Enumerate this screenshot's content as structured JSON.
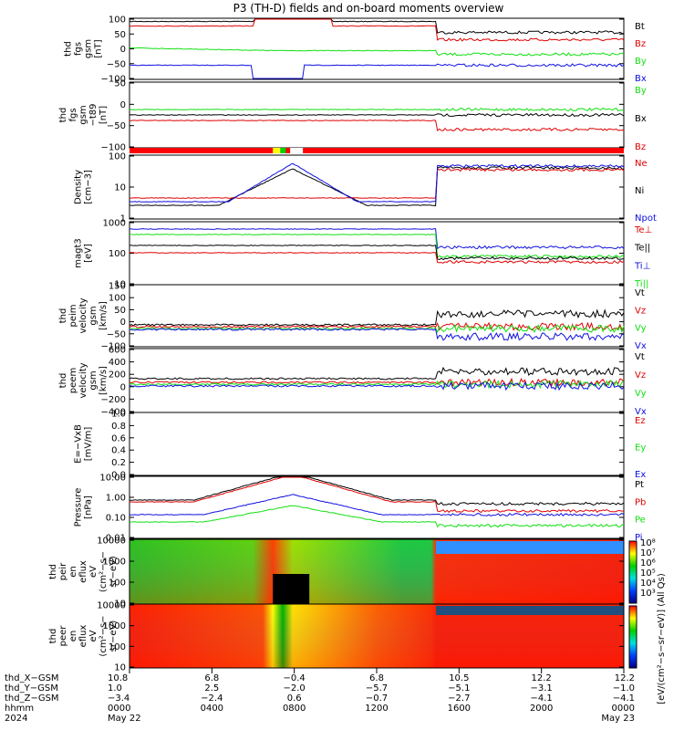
{
  "title": "P3 (TH-D) fields and on-board moments overview",
  "colors": {
    "black": "#000000",
    "red": "#e00000",
    "green": "#10e010",
    "blue": "#1010e0",
    "bar_red": "#ff0000",
    "bar_yellow": "#ffff00",
    "bar_green": "#00d000"
  },
  "chart_data": [
    {
      "id": "fgs_gsm",
      "type": "line",
      "ylabel": [
        "thd",
        "fgs",
        "gsm",
        "[nT]"
      ],
      "ylim": [
        -100,
        100
      ],
      "yticks": [
        "100",
        "50",
        "0",
        "−50",
        "−100"
      ],
      "series": [
        {
          "name": "Bt",
          "color": "black"
        },
        {
          "name": "Bz",
          "color": "red"
        },
        {
          "name": "By",
          "color": "green"
        },
        {
          "name": "Bx",
          "color": "blue"
        }
      ],
      "approx_start": {
        "Bt": 60,
        "Bz": 55,
        "By": 5,
        "Bx": -40
      },
      "approx_end": {
        "Bt": 25,
        "Bz": 20,
        "By": -10,
        "Bx": -45
      }
    },
    {
      "id": "fgs_gsm_minus_t89",
      "type": "line",
      "ylabel": [
        "thd",
        "fgs",
        "gsm",
        "−t89",
        "[nT]"
      ],
      "ylim": [
        -125,
        75
      ],
      "yticks": [
        "50",
        "0",
        "−50",
        "−100"
      ],
      "series": [
        {
          "name": "By",
          "color": "green"
        },
        {
          "name": "Bx",
          "color": "black"
        },
        {
          "name": "Bz",
          "color": "red"
        }
      ]
    },
    {
      "id": "mode_bar",
      "type": "bar"
    },
    {
      "id": "density",
      "type": "line",
      "ylabel": [
        "Density",
        "[cm−3]"
      ],
      "log": true,
      "ylim": [
        0.1,
        100
      ],
      "yticks": [
        "100",
        "10",
        "1"
      ],
      "series": [
        {
          "name": "Ne",
          "color": "red"
        },
        {
          "name": "Ni",
          "color": "black"
        },
        {
          "name": "Npot",
          "color": "blue"
        }
      ]
    },
    {
      "id": "temperature",
      "type": "line",
      "ylabel": [
        "magt3",
        "[eV]"
      ],
      "log": true,
      "ylim": [
        3,
        3000
      ],
      "yticks": [
        "1000",
        "100",
        "10"
      ],
      "series": [
        {
          "name": "Te⊥",
          "color": "red"
        },
        {
          "name": "Te||",
          "color": "black"
        },
        {
          "name": "Ti⊥",
          "color": "blue"
        },
        {
          "name": "Ti||",
          "color": "green"
        }
      ]
    },
    {
      "id": "peim_velocity",
      "type": "line",
      "ylabel": [
        "thd",
        "peim",
        "velocity",
        "gsm",
        "[km/s]"
      ],
      "ylim": [
        -100,
        160
      ],
      "yticks": [
        "150",
        "100",
        "50",
        "0",
        "−50",
        "−100"
      ],
      "series": [
        {
          "name": "Vt",
          "color": "black"
        },
        {
          "name": "Vz",
          "color": "red"
        },
        {
          "name": "Vy",
          "color": "green"
        },
        {
          "name": "Vx",
          "color": "blue"
        }
      ]
    },
    {
      "id": "peem_velocity",
      "type": "line",
      "ylabel": [
        "thd",
        "peem",
        "velocity",
        "gsm",
        "[km/s]"
      ],
      "ylim": [
        -500,
        650
      ],
      "yticks": [
        "600",
        "400",
        "200",
        "0",
        "−200",
        "−400"
      ],
      "series": [
        {
          "name": "Vt",
          "color": "black"
        },
        {
          "name": "Vz",
          "color": "red"
        },
        {
          "name": "Vy",
          "color": "green"
        },
        {
          "name": "Vx",
          "color": "blue"
        }
      ]
    },
    {
      "id": "efield",
      "type": "line",
      "ylabel": [
        "E=−VxB",
        "[mV/m]"
      ],
      "ylim": [
        0,
        1
      ],
      "yticks": [
        "1.0",
        "0.8",
        "0.6",
        "0.4",
        "0.2",
        "0.0"
      ],
      "series": [
        {
          "name": "Ez",
          "color": "red"
        },
        {
          "name": "Ey",
          "color": "green"
        },
        {
          "name": "Ex",
          "color": "blue"
        }
      ]
    },
    {
      "id": "pressure",
      "type": "line",
      "ylabel": [
        "Pressure",
        "[nPa]"
      ],
      "log": true,
      "ylim": [
        0.01,
        30
      ],
      "yticks": [
        "10.00",
        "1.00",
        "0.10",
        "0.01"
      ],
      "series": [
        {
          "name": "Pt",
          "color": "black"
        },
        {
          "name": "Pb",
          "color": "red"
        },
        {
          "name": "Pe",
          "color": "green"
        },
        {
          "name": "Pi",
          "color": "blue"
        }
      ]
    },
    {
      "id": "peir_spectrogram",
      "type": "heatmap",
      "ylabel": [
        "thd",
        "peir",
        "en",
        "eflux",
        "eV",
        "(cm²−s−",
        "sr−eV)"
      ],
      "yticks": [
        "10000",
        "1000",
        "100",
        "10"
      ]
    },
    {
      "id": "peer_spectrogram",
      "type": "heatmap",
      "ylabel": [
        "thd",
        "peer",
        "en",
        "eflux",
        "eV",
        "(cm²−s−",
        "sr−eV)"
      ],
      "yticks": [
        "10000",
        "1000",
        "100",
        "10"
      ],
      "colorbar_label": "[eV/(cm²−s−sr−eV)] (All Qs)",
      "colorbar_ticks": [
        "10⁸",
        "10⁷",
        "10⁶",
        "10⁵",
        "10⁴",
        "10³"
      ]
    }
  ],
  "footer": {
    "labels": [
      "thd_X−GSM",
      "thd_Y−GSM",
      "thd_Z−GSM",
      "hhmm",
      "2024"
    ],
    "columns": [
      {
        "x": "10.8",
        "y": "1.0",
        "z": "−3.4",
        "time": "0000",
        "date": "May 22"
      },
      {
        "x": "6.8",
        "y": "2.5",
        "z": "−2.4",
        "time": "0400",
        "date": ""
      },
      {
        "x": "−0.4",
        "y": "−2.0",
        "z": "0.6",
        "time": "0800",
        "date": ""
      },
      {
        "x": "6.8",
        "y": "−5.7",
        "z": "−0.7",
        "time": "1200",
        "date": ""
      },
      {
        "x": "10.5",
        "y": "−5.1",
        "z": "−2.7",
        "time": "1600",
        "date": ""
      },
      {
        "x": "12.2",
        "y": "−3.1",
        "z": "−4.1",
        "time": "2000",
        "date": ""
      },
      {
        "x": "12.2",
        "y": "−1.0",
        "z": "−4.1",
        "time": "0000",
        "date": "May 23"
      }
    ]
  }
}
